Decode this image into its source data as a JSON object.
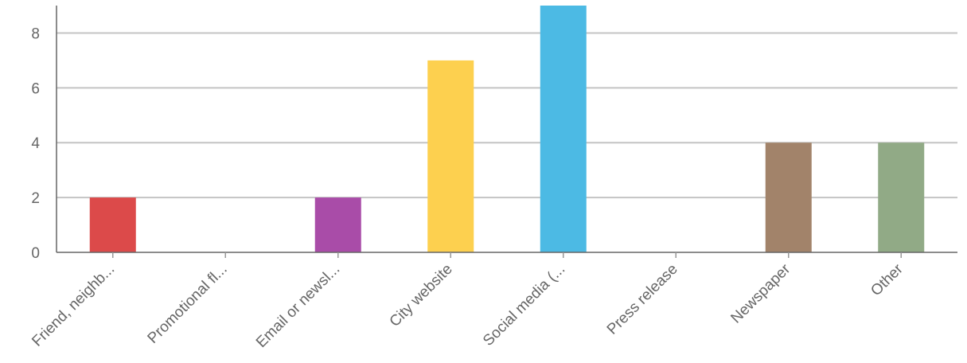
{
  "chart_data": {
    "type": "bar",
    "categories": [
      "Friend, neighb...",
      "Promotional fl...",
      "Email or newsl...",
      "City website",
      "Social media (...",
      "Press release",
      "Newspaper",
      "Other"
    ],
    "values": [
      2,
      0,
      2,
      7,
      9,
      0,
      4,
      4
    ],
    "colors": [
      "#dc4a4a",
      "#dc4a4a",
      "#a94ca8",
      "#fdd04f",
      "#4cbae4",
      "#4cbae4",
      "#a2836a",
      "#91aa86"
    ],
    "ylim": [
      0,
      9
    ],
    "yticks": [
      0,
      2,
      4,
      6,
      8
    ],
    "grid": true,
    "legend": "none"
  }
}
